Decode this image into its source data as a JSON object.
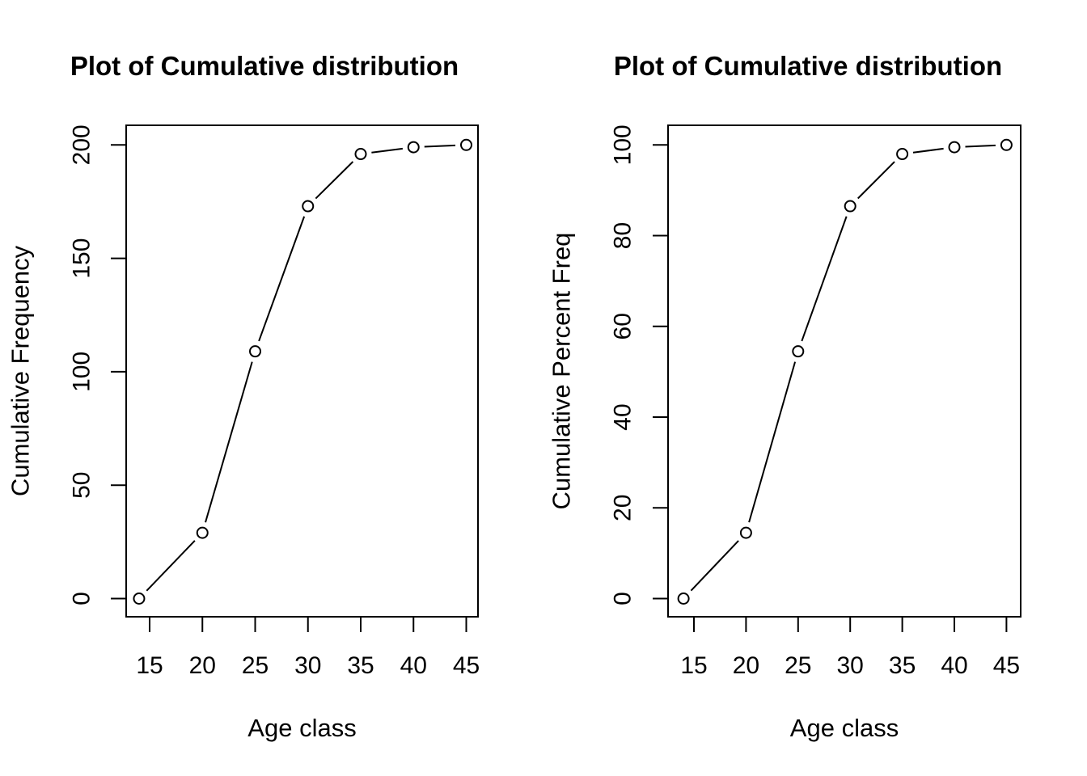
{
  "page": {
    "background_color": "#ffffff",
    "ink_color": "#000000"
  },
  "chart_data": [
    {
      "type": "line",
      "title": "Plot of Cumulative distribution",
      "xlabel": "Age class",
      "ylabel": "Cumulative Frequency",
      "x": [
        14,
        20,
        25,
        30,
        35,
        40,
        45
      ],
      "y": [
        0,
        29,
        109,
        173,
        196,
        199,
        200
      ],
      "xticks": [
        15,
        20,
        25,
        30,
        35,
        40,
        45
      ],
      "yticks": [
        0,
        50,
        100,
        150,
        200
      ],
      "xlim": [
        13.2,
        46.2
      ],
      "ylim": [
        0,
        200
      ],
      "marker": "open-circle",
      "line_style": "points-and-lines",
      "color": "#000000",
      "grid": false,
      "legend": null
    },
    {
      "type": "line",
      "title": "Plot of Cumulative distribution",
      "xlabel": "Age class",
      "ylabel": "Cumulative Percent Freq",
      "x": [
        14,
        20,
        25,
        30,
        35,
        40,
        45
      ],
      "y": [
        0,
        14.5,
        54.5,
        86.5,
        98,
        99.5,
        100
      ],
      "xticks": [
        15,
        20,
        25,
        30,
        35,
        40,
        45
      ],
      "yticks": [
        0,
        20,
        40,
        60,
        80,
        100
      ],
      "xlim": [
        13.2,
        46.2
      ],
      "ylim": [
        0,
        100
      ],
      "marker": "open-circle",
      "line_style": "points-and-lines",
      "color": "#000000",
      "grid": false,
      "legend": null
    }
  ]
}
